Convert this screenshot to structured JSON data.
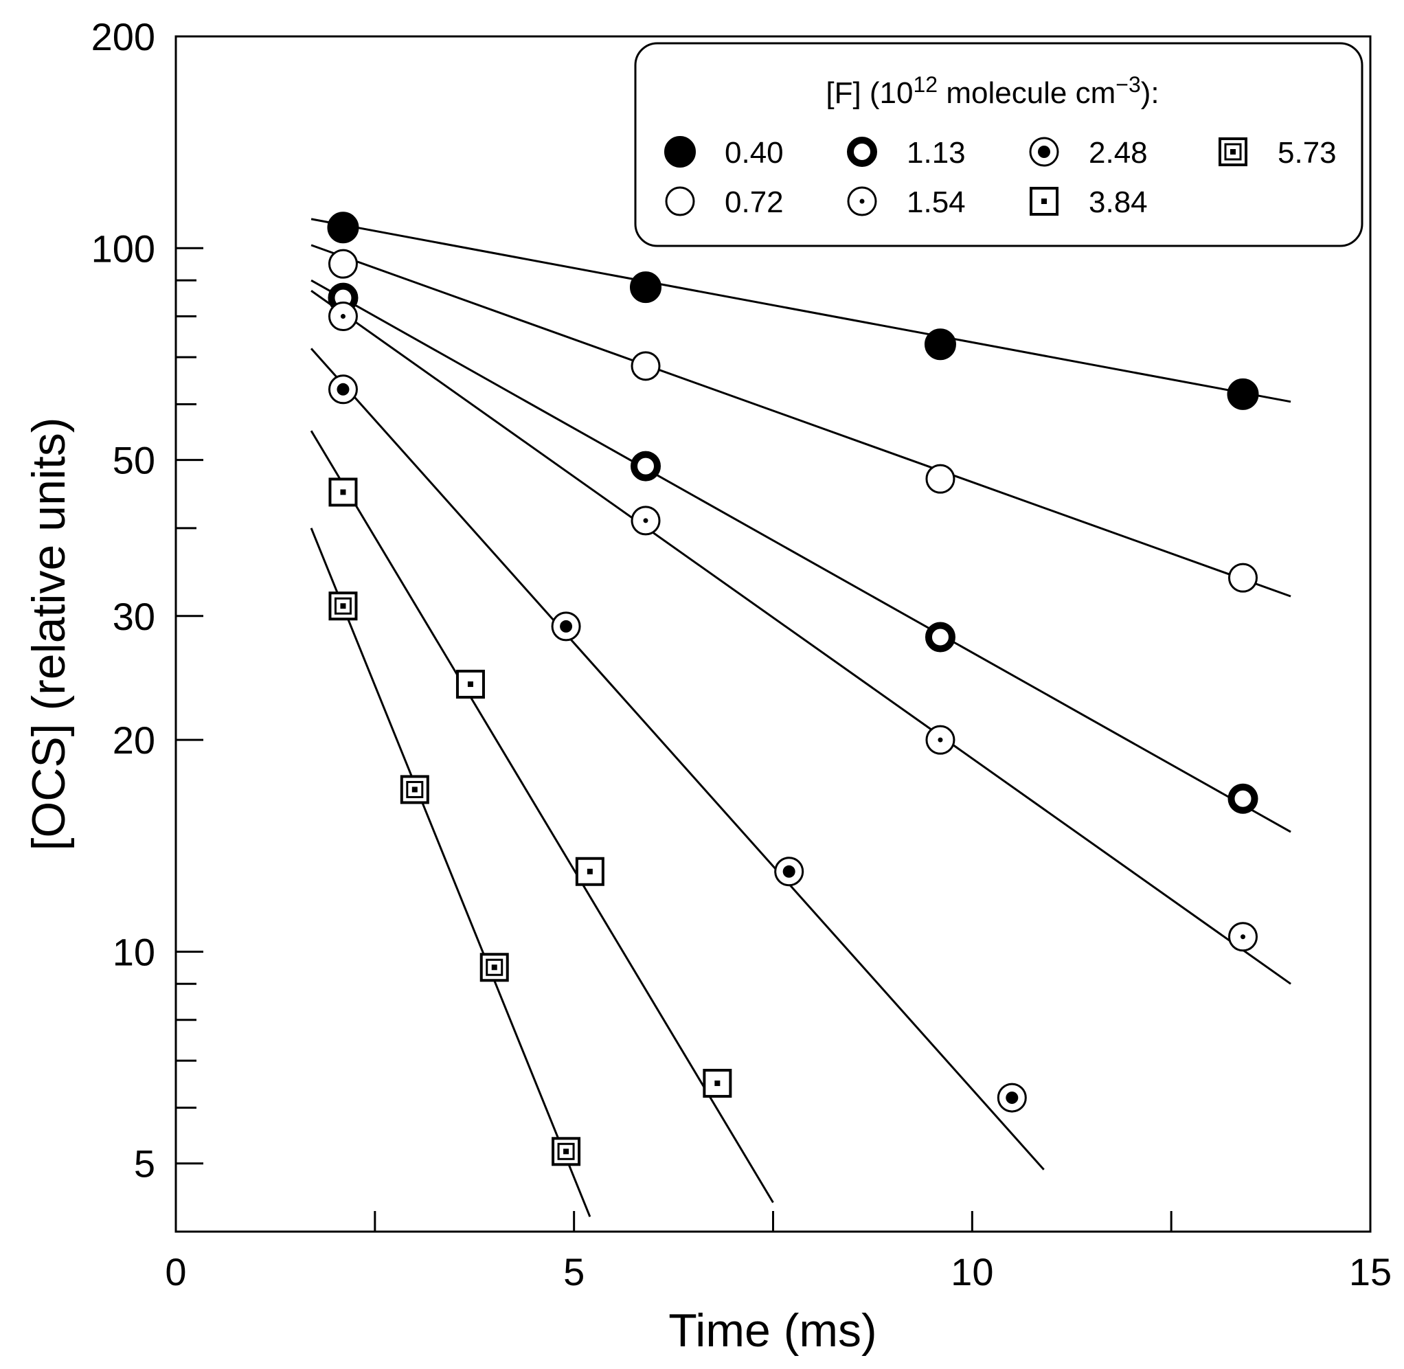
{
  "chart_data": {
    "type": "scatter",
    "title": "",
    "xlabel": "Time (ms)",
    "ylabel": "[OCS] (relative units)",
    "xscale": "linear",
    "yscale": "log",
    "xlim": [
      0,
      15
    ],
    "ylim": [
      4,
      200
    ],
    "xticks": [
      0,
      5,
      10,
      15
    ],
    "yticks": [
      5,
      10,
      20,
      30,
      50,
      100,
      200
    ],
    "grid": false,
    "legend": {
      "title_main": "[F] (10",
      "title_exp": "12",
      "title_mid": " molecule cm",
      "title_exp2": "−3",
      "title_end": "):",
      "position": "top-right",
      "columns": 4
    },
    "series": [
      {
        "name": "0.40",
        "marker": "filled-circle",
        "x": [
          2.1,
          5.9,
          9.6,
          13.4
        ],
        "y": [
          107,
          88,
          73,
          62
        ],
        "fit": {
          "x": [
            1.7,
            14.0
          ],
          "y": [
            110,
            60.5
          ]
        }
      },
      {
        "name": "0.72",
        "marker": "open-circle",
        "x": [
          2.1,
          5.9,
          9.6,
          13.4
        ],
        "y": [
          95,
          68,
          47,
          34
        ],
        "fit": {
          "x": [
            1.7,
            14.0
          ],
          "y": [
            101,
            32
          ]
        }
      },
      {
        "name": "1.13",
        "marker": "thick-ring",
        "x": [
          2.1,
          5.9,
          9.6,
          13.4
        ],
        "y": [
          85,
          49,
          28,
          16.5
        ],
        "fit": {
          "x": [
            1.7,
            14.0
          ],
          "y": [
            90,
            14.8
          ]
        }
      },
      {
        "name": "1.54",
        "marker": "circle-dot",
        "x": [
          2.1,
          5.9,
          9.6,
          13.4
        ],
        "y": [
          80,
          41,
          20,
          10.5
        ],
        "fit": {
          "x": [
            1.7,
            14.0
          ],
          "y": [
            87,
            9.0
          ]
        }
      },
      {
        "name": "2.48",
        "marker": "circle-bullseye",
        "x": [
          2.1,
          4.9,
          7.7,
          10.5
        ],
        "y": [
          63,
          29,
          13,
          6.2
        ],
        "fit": {
          "x": [
            1.7,
            10.9
          ],
          "y": [
            72,
            4.9
          ]
        }
      },
      {
        "name": "3.84",
        "marker": "square-dot",
        "x": [
          2.1,
          3.7,
          5.2,
          6.8
        ],
        "y": [
          45,
          24,
          13,
          6.5
        ],
        "fit": {
          "x": [
            1.7,
            7.5
          ],
          "y": [
            55,
            4.4
          ]
        }
      },
      {
        "name": "5.73",
        "marker": "nested-square",
        "x": [
          2.1,
          3.0,
          4.0,
          4.9
        ],
        "y": [
          31,
          17,
          9.5,
          5.2
        ],
        "fit": {
          "x": [
            1.7,
            5.2
          ],
          "y": [
            40,
            4.2
          ]
        }
      }
    ]
  }
}
